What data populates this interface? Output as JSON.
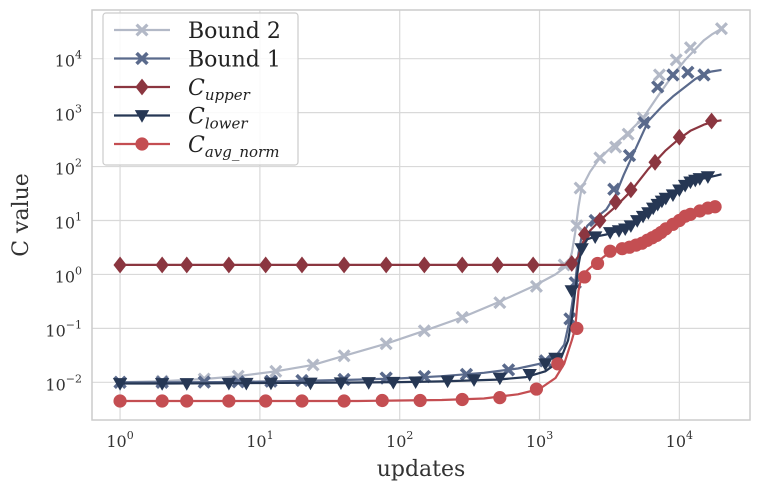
{
  "chart_data": {
    "type": "line",
    "title": "",
    "xlabel": "updates",
    "ylabel": "C value",
    "xscale": "log",
    "yscale": "log",
    "xlim": [
      0.63,
      32000
    ],
    "ylim": [
      0.002,
      80000
    ],
    "grid": true,
    "legend_position": "top-left",
    "x_ticks": [
      {
        "value": 1,
        "base": "10",
        "exp": "0"
      },
      {
        "value": 10,
        "base": "10",
        "exp": "1"
      },
      {
        "value": 100,
        "base": "10",
        "exp": "2"
      },
      {
        "value": 1000,
        "base": "10",
        "exp": "3"
      },
      {
        "value": 10000,
        "base": "10",
        "exp": "4"
      }
    ],
    "y_ticks": [
      {
        "value": 0.01,
        "base": "10",
        "exp": "−2"
      },
      {
        "value": 0.1,
        "base": "10",
        "exp": "−1"
      },
      {
        "value": 1,
        "base": "10",
        "exp": "0"
      },
      {
        "value": 10,
        "base": "10",
        "exp": "1"
      },
      {
        "value": 100,
        "base": "10",
        "exp": "2"
      },
      {
        "value": 1000,
        "base": "10",
        "exp": "3"
      },
      {
        "value": 10000,
        "base": "10",
        "exp": "4"
      }
    ],
    "series": [
      {
        "name": "Bound 2",
        "name_main": "Bound 2",
        "name_sub": "",
        "color": "#b3b9c7",
        "marker": "x",
        "x": [
          1,
          2,
          4,
          7,
          13,
          24,
          40,
          80,
          150,
          280,
          500,
          900,
          1300,
          1600,
          1700,
          1800,
          1900,
          2000,
          2300,
          2700,
          3400,
          4200,
          5500,
          7000,
          9000,
          11000,
          13000,
          15000,
          17000,
          20000
        ],
        "y": [
          0.01,
          0.0105,
          0.0115,
          0.013,
          0.016,
          0.021,
          0.031,
          0.052,
          0.09,
          0.16,
          0.3,
          0.6,
          1.0,
          1.5,
          2.5,
          6,
          18,
          40,
          80,
          145,
          250,
          400,
          800,
          2000,
          5000,
          9500,
          15000,
          22000,
          28000,
          36000
        ],
        "marker_x": [
          1,
          2,
          4,
          7,
          13,
          24,
          40,
          80,
          150,
          280,
          520,
          950,
          1500,
          1850,
          1950,
          2700,
          3500,
          4300,
          5500,
          7200,
          9500,
          12000,
          20000
        ],
        "marker_y": [
          0.01,
          0.0105,
          0.0115,
          0.013,
          0.016,
          0.021,
          0.031,
          0.052,
          0.09,
          0.16,
          0.3,
          0.6,
          1.5,
          8,
          40,
          145,
          230,
          400,
          800,
          5000,
          9500,
          16000,
          36000
        ]
      },
      {
        "name": "Bound 1",
        "name_main": "Bound 1",
        "name_sub": "",
        "color": "#5a6a8c",
        "marker": "X",
        "x": [
          1,
          2,
          5,
          10,
          20,
          50,
          100,
          200,
          400,
          700,
          1000,
          1300,
          1500,
          1650,
          1800,
          1900,
          2000,
          2200,
          2500,
          3000,
          3500,
          4000,
          5000,
          6000,
          7500,
          9000,
          11000,
          13000,
          15000,
          17000,
          20000
        ],
        "y": [
          0.01,
          0.01,
          0.0101,
          0.0103,
          0.0106,
          0.0112,
          0.0118,
          0.013,
          0.015,
          0.018,
          0.022,
          0.03,
          0.05,
          0.15,
          0.7,
          2.5,
          5,
          8,
          11,
          16,
          30,
          70,
          250,
          700,
          1300,
          2000,
          3000,
          4200,
          5200,
          5800,
          6200
        ],
        "marker_x": [
          1,
          2,
          4,
          7,
          12,
          20,
          40,
          80,
          150,
          300,
          600,
          1100,
          1650,
          1800,
          2500,
          3400,
          4400,
          5600,
          7000,
          9000,
          11500,
          15000
        ],
        "marker_y": [
          0.01,
          0.01,
          0.0101,
          0.0102,
          0.0105,
          0.0108,
          0.0113,
          0.012,
          0.0128,
          0.014,
          0.017,
          0.025,
          0.15,
          0.7,
          10,
          38,
          160,
          650,
          3000,
          5000,
          5600,
          5000
        ]
      },
      {
        "name": "C_upper",
        "name_main": "C",
        "name_sub": "upper",
        "color": "#8b3640",
        "marker": "diamond",
        "x": [
          1,
          100,
          500,
          1000,
          1500,
          1750,
          1900,
          2050,
          2300,
          2700,
          3500,
          4500,
          6000,
          8000,
          10000,
          12000,
          15000,
          18000,
          20000
        ],
        "y": [
          1.5,
          1.5,
          1.5,
          1.5,
          1.5,
          1.6,
          2.2,
          4,
          6.5,
          10,
          18,
          35,
          90,
          200,
          330,
          460,
          600,
          690,
          720
        ],
        "marker_x": [
          1,
          2,
          3,
          6,
          11,
          20,
          40,
          80,
          150,
          280,
          500,
          900,
          1700,
          2100,
          2700,
          3500,
          4500,
          6700,
          10000,
          17000
        ],
        "marker_y": [
          1.5,
          1.5,
          1.5,
          1.5,
          1.5,
          1.5,
          1.5,
          1.5,
          1.5,
          1.5,
          1.5,
          1.5,
          1.6,
          5.5,
          10,
          22,
          37,
          120,
          350,
          700
        ]
      },
      {
        "name": "C_lower",
        "name_main": "C",
        "name_sub": "lower",
        "color": "#263754",
        "marker": "triangle-down",
        "x": [
          1,
          2,
          5,
          10,
          20,
          50,
          100,
          200,
          500,
          800,
          1100,
          1400,
          1600,
          1700,
          1800,
          1900,
          2000,
          2200,
          2500,
          3000,
          4000,
          5000,
          6000,
          7000,
          8000,
          10000,
          12000,
          14000,
          17000,
          20000
        ],
        "y": [
          0.0095,
          0.0095,
          0.0096,
          0.0097,
          0.0098,
          0.0099,
          0.0101,
          0.0104,
          0.0112,
          0.0125,
          0.016,
          0.025,
          0.06,
          0.15,
          0.5,
          1.5,
          3,
          4.5,
          5,
          5.5,
          7,
          10,
          15,
          20,
          27,
          40,
          50,
          58,
          65,
          72
        ],
        "marker_x": [
          1,
          2,
          3,
          6,
          8,
          12,
          23,
          38,
          60,
          90,
          130,
          220,
          340,
          520,
          850,
          1100,
          1300,
          1700,
          2000,
          2500,
          3200,
          3700,
          4100,
          4500,
          5000,
          5500,
          6000,
          6500,
          7000,
          7500,
          8000,
          9000,
          10000,
          11000,
          12000,
          13000,
          14000,
          16000
        ],
        "marker_y": [
          0.0095,
          0.0095,
          0.0095,
          0.0096,
          0.0096,
          0.0097,
          0.0097,
          0.0098,
          0.0099,
          0.01,
          0.0102,
          0.0106,
          0.0112,
          0.012,
          0.014,
          0.022,
          0.028,
          0.5,
          3,
          5,
          6,
          6.5,
          7,
          8,
          10,
          12,
          14,
          17,
          20,
          23,
          26,
          30,
          37,
          45,
          52,
          56,
          60,
          65
        ]
      },
      {
        "name": "C_avg_norm",
        "name_main": "C",
        "name_sub": "avg_norm",
        "color": "#c44e52",
        "marker": "circle",
        "x": [
          1,
          10,
          50,
          100,
          200,
          400,
          700,
          1000,
          1300,
          1500,
          1700,
          1800,
          1900,
          2000,
          2200,
          2500,
          3000,
          4000,
          5000,
          6000,
          8000,
          10000,
          12000,
          14000,
          17000,
          20000
        ],
        "y": [
          0.0045,
          0.0045,
          0.0045,
          0.0046,
          0.0047,
          0.005,
          0.006,
          0.0075,
          0.012,
          0.022,
          0.06,
          0.1,
          0.5,
          0.9,
          1.2,
          1.6,
          2.3,
          3,
          3.5,
          4.2,
          6.5,
          10,
          13,
          15,
          17,
          18
        ],
        "marker_x": [
          1,
          2,
          3,
          6,
          11,
          20,
          40,
          75,
          140,
          280,
          520,
          950,
          1350,
          1850,
          2100,
          2600,
          3200,
          3900,
          4400,
          4900,
          5400,
          5900,
          6400,
          6900,
          7400,
          8000,
          9000,
          10000,
          11000,
          12000,
          14000,
          16000,
          18000
        ],
        "marker_y": [
          0.0045,
          0.0045,
          0.0045,
          0.0045,
          0.0045,
          0.0045,
          0.0045,
          0.0046,
          0.0046,
          0.0048,
          0.0052,
          0.0075,
          0.022,
          0.1,
          0.9,
          1.6,
          2.7,
          3.0,
          3.2,
          3.5,
          3.8,
          4.3,
          4.8,
          5.3,
          6.0,
          7.0,
          8.5,
          10,
          12,
          13,
          15,
          17,
          18
        ]
      }
    ]
  }
}
